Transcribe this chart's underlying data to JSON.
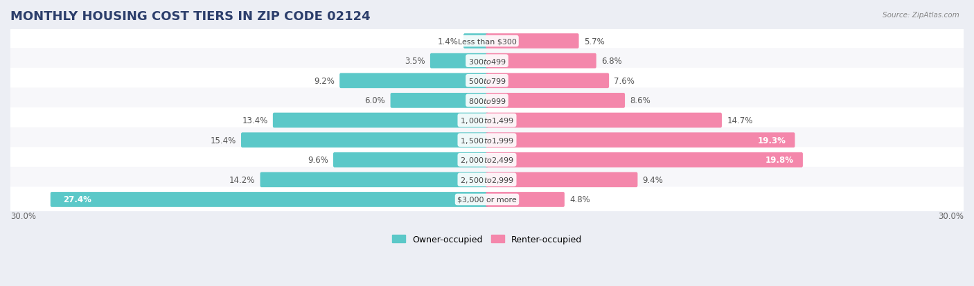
{
  "title": "MONTHLY HOUSING COST TIERS IN ZIP CODE 02124",
  "source": "Source: ZipAtlas.com",
  "categories": [
    "Less than $300",
    "$300 to $499",
    "$500 to $799",
    "$800 to $999",
    "$1,000 to $1,499",
    "$1,500 to $1,999",
    "$2,000 to $2,499",
    "$2,500 to $2,999",
    "$3,000 or more"
  ],
  "owner_values": [
    1.4,
    3.5,
    9.2,
    6.0,
    13.4,
    15.4,
    9.6,
    14.2,
    27.4
  ],
  "renter_values": [
    5.7,
    6.8,
    7.6,
    8.6,
    14.7,
    19.3,
    19.8,
    9.4,
    4.8
  ],
  "owner_color": "#5BC8C8",
  "renter_color": "#F487AB",
  "background_color": "#ECEEF4",
  "row_bg_color": "#F7F7FA",
  "row_alt_bg_color": "#FFFFFF",
  "max_val": 30.0,
  "legend_owner": "Owner-occupied",
  "legend_renter": "Renter-occupied",
  "title_fontsize": 13,
  "bar_height": 0.6,
  "label_fontsize": 8.5,
  "cat_fontsize": 8.0
}
